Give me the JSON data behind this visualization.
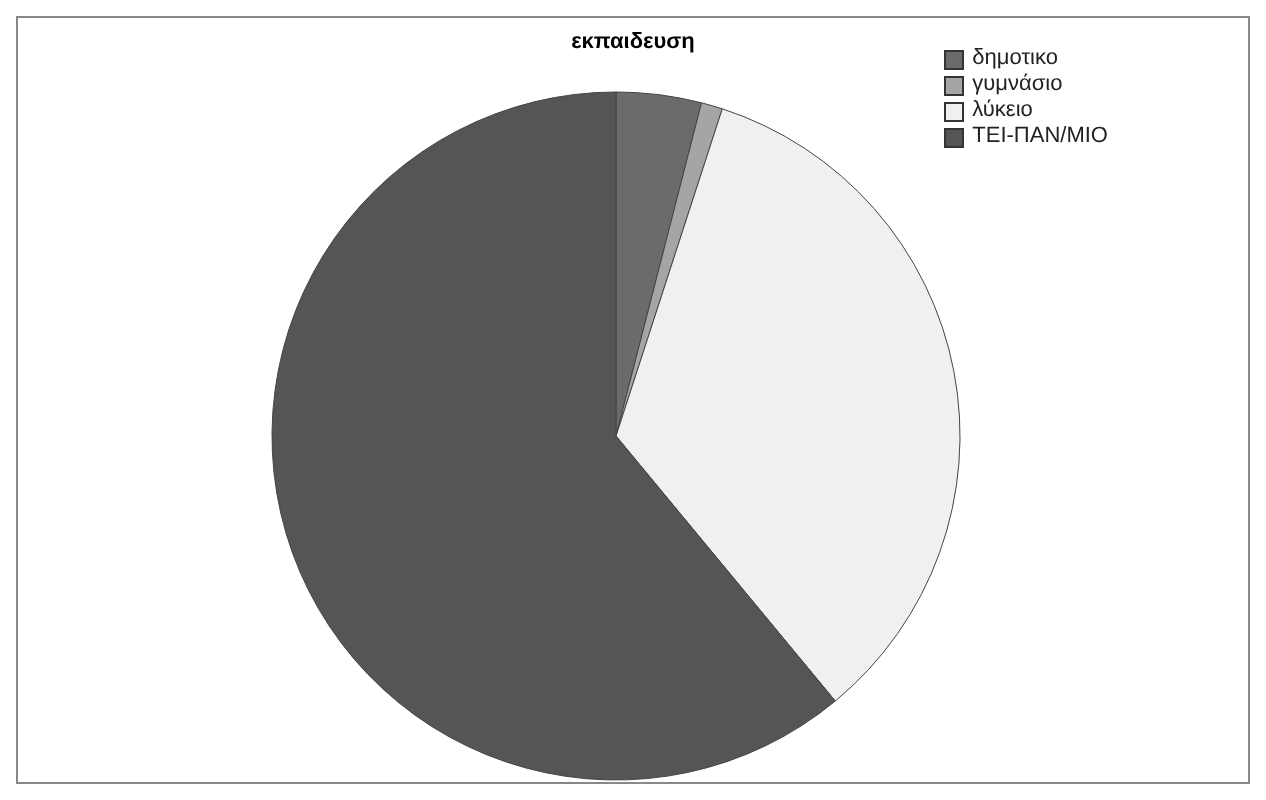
{
  "chart_data": {
    "type": "pie",
    "title": "εκπαιδευση",
    "categories": [
      "δημοτικο",
      "γυμνάσιο",
      "λύκειο",
      "ΤΕΙ-ΠΑΝ/ΜΙΟ"
    ],
    "values": [
      4,
      1,
      34,
      61
    ],
    "colors": [
      "#6b6b6b",
      "#a5a5a5",
      "#f0f0f0",
      "#555555"
    ],
    "legend": "top right"
  }
}
